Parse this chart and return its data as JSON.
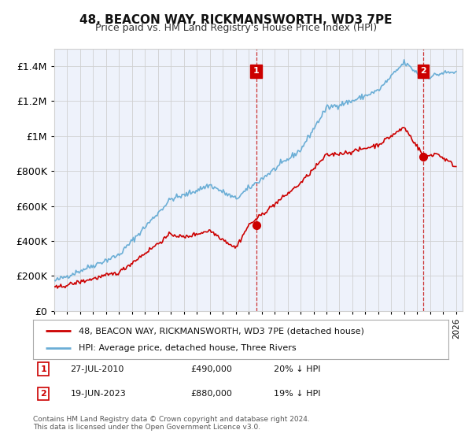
{
  "title": "48, BEACON WAY, RICKMANSWORTH, WD3 7PE",
  "subtitle": "Price paid vs. HM Land Registry's House Price Index (HPI)",
  "hpi_label": "HPI: Average price, detached house, Three Rivers",
  "property_label": "48, BEACON WAY, RICKMANSWORTH, WD3 7PE (detached house)",
  "legend1_date": "27-JUL-2010",
  "legend1_price": "£490,000",
  "legend1_hpi": "20% ↓ HPI",
  "legend2_date": "19-JUN-2023",
  "legend2_price": "£880,000",
  "legend2_hpi": "19% ↓ HPI",
  "footer": "Contains HM Land Registry data © Crown copyright and database right 2024.\nThis data is licensed under the Open Government Licence v3.0.",
  "hpi_color": "#6baed6",
  "property_color": "#cc0000",
  "vline_color": "#cc3333",
  "grid_color": "#d0d0d0",
  "ylim": [
    0,
    1500000
  ],
  "yticks": [
    0,
    200000,
    400000,
    600000,
    800000,
    1000000,
    1200000,
    1400000
  ],
  "xlim_start": 1995.0,
  "xlim_end": 2026.5,
  "plot_bg": "#eef2fb"
}
